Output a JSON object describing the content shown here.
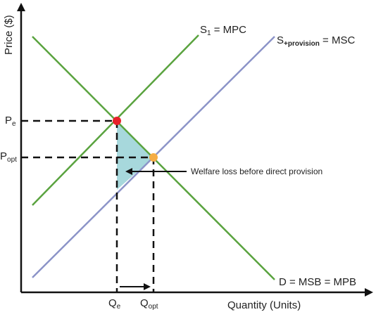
{
  "axes": {
    "y_label": "Price ($)",
    "x_label": "Quantity (Units)"
  },
  "curves": {
    "s1": {
      "main": "S",
      "sub": "1",
      "rest": " = MPC",
      "color": "#5aa33f"
    },
    "s_provision": {
      "main": "S",
      "sub": "+provision",
      "rest": " = MSC",
      "color": "#8c94c8"
    },
    "demand": {
      "label": "D = MSB = MPB",
      "color": "#5aa33f"
    }
  },
  "ticks": {
    "pe": {
      "main": "P",
      "sub": "e"
    },
    "popt": {
      "main": "P",
      "sub": "opt"
    },
    "qe": {
      "main": "Q",
      "sub": "e"
    },
    "qopt": {
      "main": "Q",
      "sub": "opt"
    }
  },
  "points": {
    "equilibrium_color": "#e8202a",
    "optimum_color": "#f5ad45"
  },
  "welfare_loss": {
    "label": "Welfare loss before direct provision",
    "fill": "#a7d8dc"
  }
}
